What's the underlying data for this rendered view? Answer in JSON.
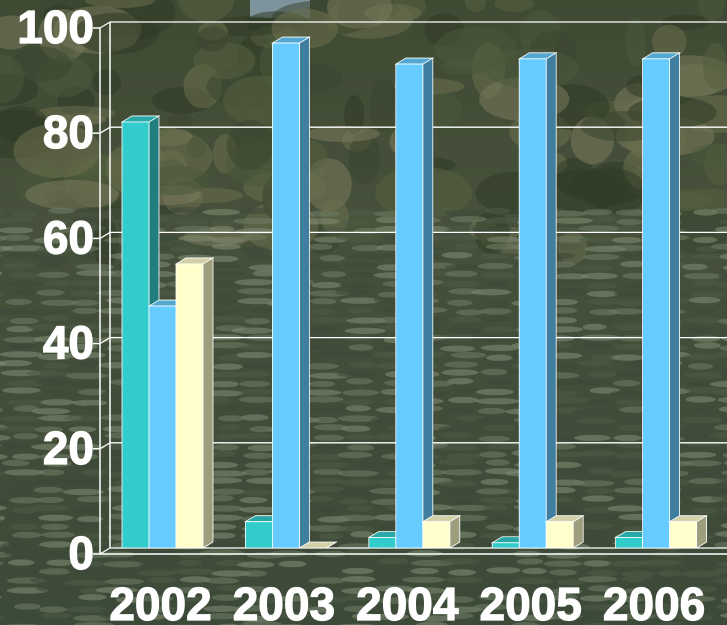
{
  "chart_data": {
    "type": "bar",
    "style": "3d-clustered-column",
    "categories": [
      "2002",
      "2003",
      "2004",
      "2005",
      "2006"
    ],
    "series": [
      {
        "color": "#33cccc",
        "values": [
          81,
          5,
          2,
          1,
          2
        ]
      },
      {
        "color": "#66ccff",
        "values": [
          46,
          96,
          92,
          93,
          93
        ]
      },
      {
        "color": "#ffffcc",
        "values": [
          54,
          0,
          5,
          5,
          5
        ]
      }
    ],
    "ylim": [
      0,
      100
    ],
    "yticks": [
      "0",
      "20",
      "40",
      "60",
      "80",
      "100"
    ],
    "grid": true,
    "gridline_color": "#ffffff",
    "tick_label_color": "#ffffff",
    "legend": "none",
    "background": "photograph of a hillside with trees and tea terraces"
  }
}
